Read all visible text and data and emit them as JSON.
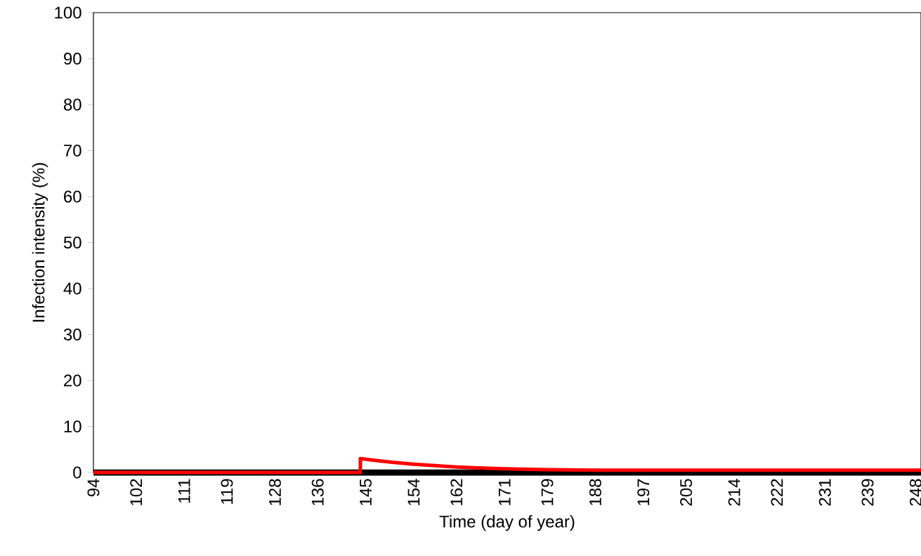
{
  "chart_data": {
    "type": "line",
    "xlabel": "Time (day of year)",
    "ylabel": "Infection intensity (%)",
    "xlim": [
      94,
      249
    ],
    "ylim": [
      0,
      100
    ],
    "xticks": [
      94,
      102,
      111,
      119,
      128,
      136,
      145,
      154,
      162,
      171,
      179,
      188,
      197,
      205,
      214,
      222,
      231,
      239,
      248
    ],
    "yticks": [
      0,
      10,
      20,
      30,
      40,
      50,
      60,
      70,
      80,
      90,
      100
    ],
    "series": [
      {
        "color": "#000000",
        "x": [
          94,
          249
        ],
        "values": [
          0,
          0
        ]
      },
      {
        "color": "#ff0000",
        "x": [
          94,
          144,
          144,
          147,
          150,
          154,
          158,
          162,
          166,
          171,
          179,
          188,
          200,
          249
        ],
        "values": [
          0,
          0,
          3,
          2.6,
          2.2,
          1.8,
          1.5,
          1.2,
          1,
          0.8,
          0.6,
          0.5,
          0.5,
          0.5
        ]
      }
    ]
  }
}
